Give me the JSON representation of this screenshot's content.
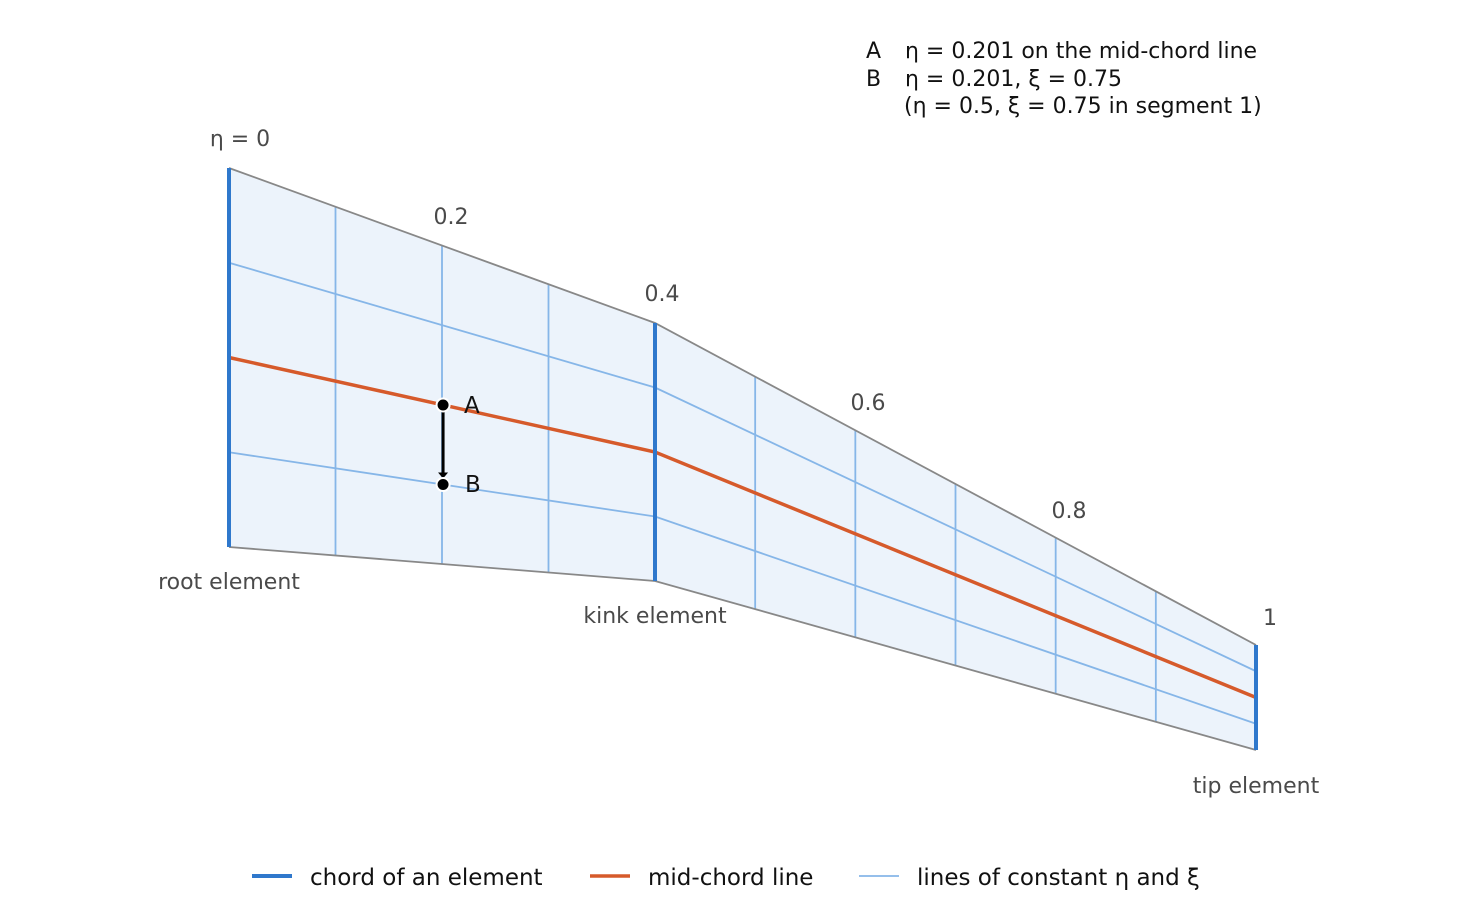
{
  "colors": {
    "chord": "#2f78cc",
    "mid_chord": "#d65a2b",
    "grid": "#86b6e8",
    "fill": "#ecf3fb",
    "outline": "#888888",
    "point": "#000000"
  },
  "eta_labels": [
    "η = 0",
    "0.2",
    "0.4",
    "0.6",
    "0.8",
    "1"
  ],
  "element_labels": {
    "root": "root element",
    "kink": "kink element",
    "tip": "tip element"
  },
  "points": {
    "A": {
      "label": "A",
      "eta": 0.201,
      "xi": 0.5
    },
    "B": {
      "label": "B",
      "eta": 0.201,
      "xi": 0.75
    }
  },
  "notes": {
    "a_key": "A",
    "a_text": "η = 0.201 on the mid-chord line",
    "b_key": "B",
    "b_text": "η = 0.201, ξ = 0.75",
    "b_sub": "(η = 0.5, ξ = 0.75 in segment 1)"
  },
  "legend": {
    "chord": "chord of an element",
    "mid_chord": "mid-chord line",
    "grid": "lines of constant η and ξ"
  }
}
